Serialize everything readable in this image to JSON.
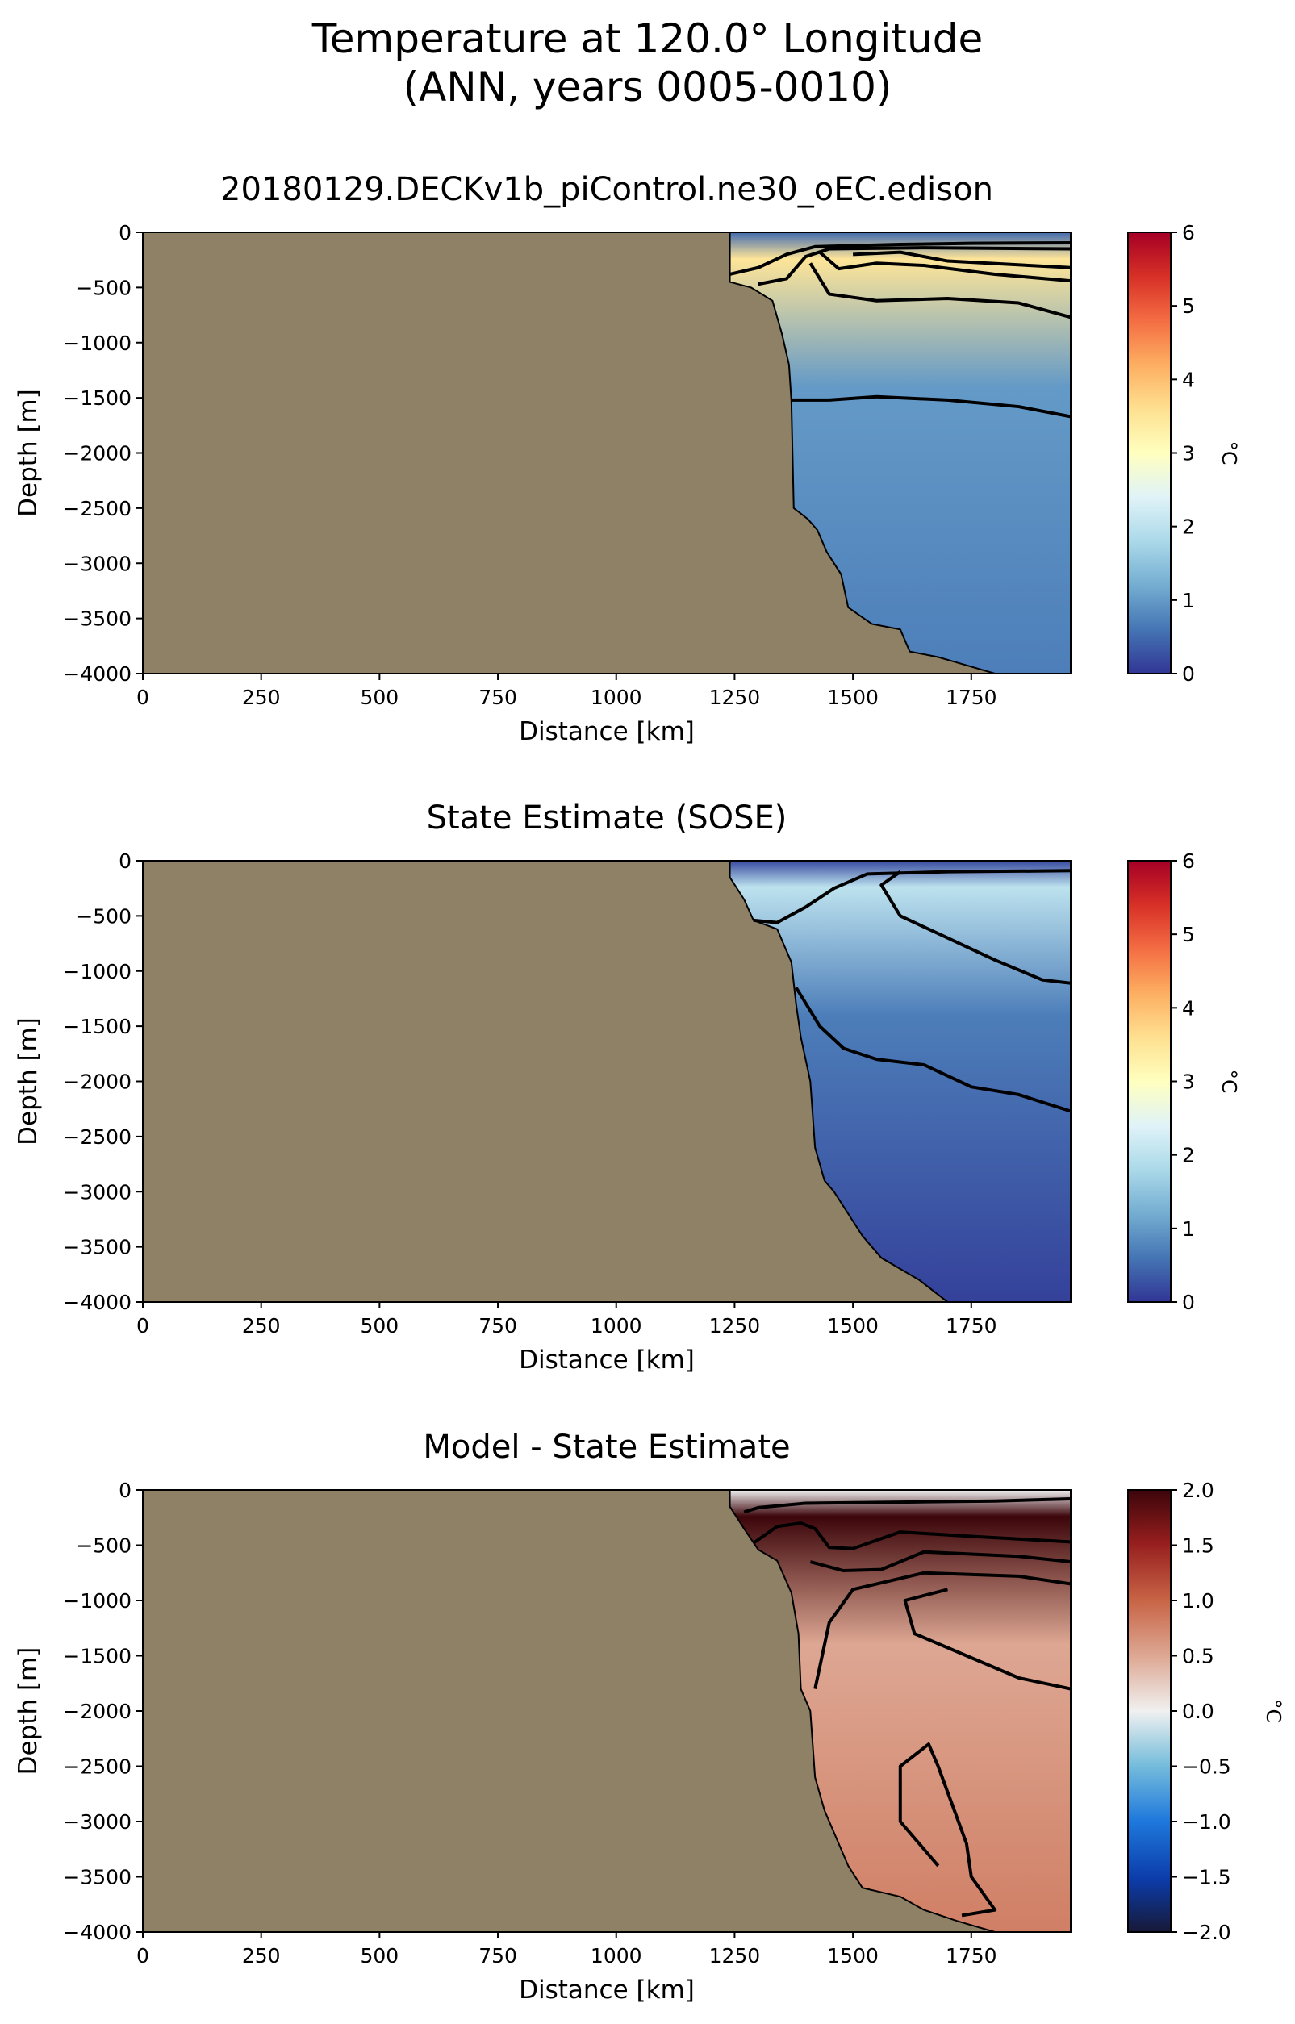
{
  "figure": {
    "title_line1": "Temperature at 120.0° Longitude",
    "title_line2": "(ANN, years 0005-0010)",
    "colors": {
      "land": "#8f8166",
      "contour": "#000000"
    }
  },
  "chart_data": [
    {
      "type": "heatmap",
      "title": "20180129.DECKv1b_piControl.ne30_oEC.edison",
      "xlabel": "Distance [km]",
      "ylabel": "Depth [m]",
      "xlim": [
        0,
        1960
      ],
      "ylim": [
        -4000,
        0
      ],
      "xticks": [
        0,
        250,
        500,
        750,
        1000,
        1250,
        1500,
        1750
      ],
      "yticks": [
        0,
        -500,
        -1000,
        -1500,
        -2000,
        -2500,
        -3000,
        -3500,
        -4000
      ],
      "colorbar": {
        "label": "°C",
        "range": [
          0,
          6
        ],
        "ticks": [
          0,
          1,
          2,
          3,
          4,
          5,
          6
        ],
        "colormap": "RdYlBu_r"
      },
      "land_boundary": [
        [
          1240,
          0
        ],
        [
          1240,
          -450
        ],
        [
          1285,
          -500
        ],
        [
          1330,
          -620
        ],
        [
          1350,
          -920
        ],
        [
          1365,
          -1200
        ],
        [
          1370,
          -1530
        ],
        [
          1375,
          -2500
        ],
        [
          1405,
          -2600
        ],
        [
          1425,
          -2700
        ],
        [
          1445,
          -2900
        ],
        [
          1475,
          -3100
        ],
        [
          1490,
          -3400
        ],
        [
          1540,
          -3550
        ],
        [
          1600,
          -3600
        ],
        [
          1620,
          -3800
        ],
        [
          1680,
          -3850
        ],
        [
          1720,
          -3900
        ],
        [
          1800,
          -4000
        ]
      ],
      "contours": [
        {
          "level": 0.5,
          "points": [
            [
              1240,
              -380
            ],
            [
              1300,
              -320
            ],
            [
              1360,
              -200
            ],
            [
              1420,
              -130
            ],
            [
              1600,
              -110
            ],
            [
              1750,
              -100
            ],
            [
              1960,
              -95
            ]
          ]
        },
        {
          "level": 1.0,
          "points": [
            [
              1300,
              -470
            ],
            [
              1360,
              -420
            ],
            [
              1400,
              -220
            ],
            [
              1450,
              -150
            ],
            [
              1650,
              -140
            ],
            [
              1960,
              -150
            ]
          ]
        },
        {
          "level": 2.0,
          "points": [
            [
              1410,
              -280
            ],
            [
              1450,
              -560
            ],
            [
              1550,
              -620
            ],
            [
              1700,
              -600
            ],
            [
              1850,
              -640
            ],
            [
              1960,
              -770
            ]
          ]
        },
        {
          "level": 3.0,
          "points": [
            [
              1430,
              -180
            ],
            [
              1470,
              -330
            ],
            [
              1550,
              -280
            ],
            [
              1650,
              -300
            ],
            [
              1800,
              -380
            ],
            [
              1960,
              -440
            ]
          ]
        },
        {
          "level": 4.0,
          "points": [
            [
              1500,
              -200
            ],
            [
              1600,
              -180
            ],
            [
              1700,
              -260
            ],
            [
              1960,
              -320
            ]
          ]
        },
        {
          "level": 1.5,
          "points": [
            [
              1370,
              -1520
            ],
            [
              1450,
              -1520
            ],
            [
              1550,
              -1490
            ],
            [
              1700,
              -1520
            ],
            [
              1850,
              -1580
            ],
            [
              1960,
              -1670
            ]
          ]
        }
      ],
      "field": {
        "surface_cold_value": 0.5,
        "subsurface_peak_value": 3.5,
        "deep_value": 1.0,
        "bottom_value": 0.7
      }
    },
    {
      "type": "heatmap",
      "title": "State Estimate (SOSE)",
      "xlabel": "Distance [km]",
      "ylabel": "Depth [m]",
      "xlim": [
        0,
        1960
      ],
      "ylim": [
        -4000,
        0
      ],
      "xticks": [
        0,
        250,
        500,
        750,
        1000,
        1250,
        1500,
        1750
      ],
      "yticks": [
        0,
        -500,
        -1000,
        -1500,
        -2000,
        -2500,
        -3000,
        -3500,
        -4000
      ],
      "colorbar": {
        "label": "°C",
        "range": [
          0,
          6
        ],
        "ticks": [
          0,
          1,
          2,
          3,
          4,
          5,
          6
        ],
        "colormap": "RdYlBu_r"
      },
      "land_boundary": [
        [
          1240,
          0
        ],
        [
          1240,
          -150
        ],
        [
          1270,
          -350
        ],
        [
          1290,
          -540
        ],
        [
          1340,
          -620
        ],
        [
          1370,
          -920
        ],
        [
          1380,
          -1300
        ],
        [
          1390,
          -1600
        ],
        [
          1410,
          -2000
        ],
        [
          1420,
          -2600
        ],
        [
          1440,
          -2900
        ],
        [
          1460,
          -3000
        ],
        [
          1520,
          -3400
        ],
        [
          1560,
          -3600
        ],
        [
          1640,
          -3800
        ],
        [
          1700,
          -4000
        ]
      ],
      "contours": [
        {
          "level": 0.5,
          "points": [
            [
              1290,
              -540
            ],
            [
              1340,
              -560
            ],
            [
              1400,
              -420
            ],
            [
              1460,
              -250
            ],
            [
              1530,
              -120
            ],
            [
              1700,
              -100
            ],
            [
              1960,
              -90
            ]
          ]
        },
        {
          "level": 1.5,
          "points": [
            [
              1600,
              -100
            ],
            [
              1560,
              -220
            ],
            [
              1600,
              -500
            ],
            [
              1700,
              -700
            ],
            [
              1800,
              -900
            ],
            [
              1900,
              -1080
            ],
            [
              1960,
              -1110
            ]
          ]
        },
        {
          "level": 1.0,
          "points": [
            [
              1380,
              -1150
            ],
            [
              1430,
              -1500
            ],
            [
              1480,
              -1700
            ],
            [
              1550,
              -1800
            ],
            [
              1650,
              -1850
            ],
            [
              1750,
              -2050
            ],
            [
              1850,
              -2120
            ],
            [
              1960,
              -2270
            ]
          ]
        }
      ],
      "field": {
        "surface_cold_value": 0.2,
        "subsurface_peak_value": 2.0,
        "deep_value": 0.7,
        "bottom_value": 0.1
      }
    },
    {
      "type": "heatmap",
      "title": "Model - State Estimate",
      "xlabel": "Distance [km]",
      "ylabel": "Depth [m]",
      "xlim": [
        0,
        1960
      ],
      "ylim": [
        -4000,
        0
      ],
      "xticks": [
        0,
        250,
        500,
        750,
        1000,
        1250,
        1500,
        1750
      ],
      "yticks": [
        0,
        -500,
        -1000,
        -1500,
        -2000,
        -2500,
        -3000,
        -3500,
        -4000
      ],
      "colorbar": {
        "label": "°C",
        "range": [
          -2,
          2
        ],
        "ticks": [
          -2.0,
          -1.5,
          -1.0,
          -0.5,
          0.0,
          0.5,
          1.0,
          1.5,
          2.0
        ],
        "colormap": "RdBu_r"
      },
      "land_boundary": [
        [
          1240,
          0
        ],
        [
          1240,
          -150
        ],
        [
          1270,
          -350
        ],
        [
          1300,
          -540
        ],
        [
          1340,
          -640
        ],
        [
          1370,
          -930
        ],
        [
          1385,
          -1300
        ],
        [
          1390,
          -1800
        ],
        [
          1410,
          -2000
        ],
        [
          1420,
          -2600
        ],
        [
          1440,
          -2900
        ],
        [
          1460,
          -3100
        ],
        [
          1490,
          -3400
        ],
        [
          1520,
          -3600
        ],
        [
          1600,
          -3680
        ],
        [
          1650,
          -3800
        ],
        [
          1720,
          -3900
        ],
        [
          1800,
          -4000
        ]
      ],
      "contours": [
        {
          "level": 1.5,
          "points": [
            [
              1270,
              -200
            ],
            [
              1300,
              -160
            ],
            [
              1400,
              -120
            ],
            [
              1600,
              -110
            ],
            [
              1800,
              -100
            ],
            [
              1960,
              -80
            ]
          ]
        },
        {
          "level": 1.5,
          "points": [
            [
              1290,
              -480
            ],
            [
              1340,
              -330
            ],
            [
              1390,
              -300
            ],
            [
              1420,
              -350
            ],
            [
              1450,
              -520
            ],
            [
              1500,
              -530
            ],
            [
              1600,
              -380
            ],
            [
              1750,
              -420
            ],
            [
              1960,
              -470
            ]
          ]
        },
        {
          "level": 1.0,
          "points": [
            [
              1410,
              -650
            ],
            [
              1480,
              -730
            ],
            [
              1560,
              -720
            ],
            [
              1650,
              -560
            ],
            [
              1850,
              -600
            ],
            [
              1960,
              -650
            ]
          ]
        },
        {
          "level": 0.5,
          "points": [
            [
              1420,
              -1800
            ],
            [
              1450,
              -1200
            ],
            [
              1500,
              -900
            ],
            [
              1650,
              -750
            ],
            [
              1850,
              -780
            ],
            [
              1960,
              -850
            ]
          ]
        },
        {
          "level": 0.5,
          "points": [
            [
              1700,
              -900
            ],
            [
              1610,
              -1000
            ],
            [
              1630,
              -1300
            ],
            [
              1740,
              -1500
            ],
            [
              1850,
              -1700
            ],
            [
              1960,
              -1800
            ]
          ]
        },
        {
          "level": 1.0,
          "points": [
            [
              1680,
              -3400
            ],
            [
              1600,
              -3000
            ],
            [
              1600,
              -2500
            ],
            [
              1660,
              -2300
            ],
            [
              1680,
              -2500
            ],
            [
              1740,
              -3200
            ],
            [
              1750,
              -3500
            ],
            [
              1800,
              -3800
            ],
            [
              1730,
              -3850
            ]
          ]
        }
      ],
      "field": {
        "surface_cold_value": 0.0,
        "subsurface_peak_value": 2.0,
        "deep_value": 0.5,
        "bottom_value": 0.8
      }
    }
  ]
}
